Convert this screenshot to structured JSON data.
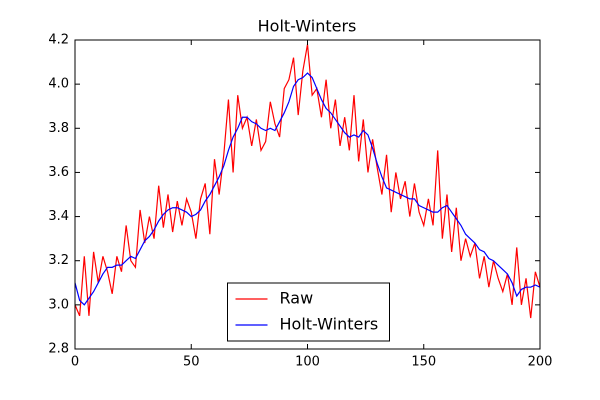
{
  "chart_data": {
    "type": "line",
    "title": "Holt-Winters",
    "x": [
      0,
      2,
      4,
      6,
      8,
      10,
      12,
      14,
      16,
      18,
      20,
      22,
      24,
      26,
      28,
      30,
      32,
      34,
      36,
      38,
      40,
      42,
      44,
      46,
      48,
      50,
      52,
      54,
      56,
      58,
      60,
      62,
      64,
      66,
      68,
      70,
      72,
      74,
      76,
      78,
      80,
      82,
      84,
      86,
      88,
      90,
      92,
      94,
      96,
      98,
      100,
      102,
      104,
      106,
      108,
      110,
      112,
      114,
      116,
      118,
      120,
      122,
      124,
      126,
      128,
      130,
      132,
      134,
      136,
      138,
      140,
      142,
      144,
      146,
      148,
      150,
      152,
      154,
      156,
      158,
      160,
      162,
      164,
      166,
      168,
      170,
      172,
      174,
      176,
      178,
      180,
      182,
      184,
      186,
      188,
      190,
      192,
      194,
      196,
      198,
      200
    ],
    "series": [
      {
        "name": "Raw",
        "color": "#ff0000",
        "values": [
          3.0,
          2.95,
          3.22,
          2.95,
          3.24,
          3.1,
          3.22,
          3.15,
          3.05,
          3.22,
          3.15,
          3.36,
          3.2,
          3.17,
          3.43,
          3.28,
          3.4,
          3.3,
          3.54,
          3.35,
          3.5,
          3.33,
          3.47,
          3.36,
          3.48,
          3.42,
          3.3,
          3.48,
          3.55,
          3.32,
          3.66,
          3.5,
          3.68,
          3.93,
          3.6,
          3.95,
          3.8,
          3.85,
          3.72,
          3.84,
          3.7,
          3.74,
          3.92,
          3.82,
          3.76,
          3.98,
          4.02,
          4.12,
          3.86,
          4.06,
          4.18,
          3.95,
          3.98,
          3.85,
          4.02,
          3.8,
          3.93,
          3.72,
          3.85,
          3.7,
          3.95,
          3.65,
          3.84,
          3.6,
          3.75,
          3.62,
          3.5,
          3.68,
          3.42,
          3.6,
          3.48,
          3.56,
          3.4,
          3.55,
          3.42,
          3.36,
          3.48,
          3.36,
          3.7,
          3.3,
          3.5,
          3.24,
          3.44,
          3.2,
          3.3,
          3.22,
          3.28,
          3.12,
          3.22,
          3.08,
          3.2,
          3.12,
          3.06,
          3.14,
          3.0,
          3.26,
          3.0,
          3.12,
          2.94,
          3.15,
          3.08
        ]
      },
      {
        "name": "Holt-Winters",
        "color": "#0000ff",
        "values": [
          3.1,
          3.02,
          3.0,
          3.03,
          3.06,
          3.1,
          3.14,
          3.17,
          3.17,
          3.18,
          3.18,
          3.2,
          3.22,
          3.21,
          3.25,
          3.29,
          3.31,
          3.34,
          3.38,
          3.41,
          3.43,
          3.44,
          3.44,
          3.43,
          3.42,
          3.4,
          3.41,
          3.43,
          3.47,
          3.5,
          3.54,
          3.58,
          3.63,
          3.7,
          3.76,
          3.8,
          3.85,
          3.85,
          3.83,
          3.82,
          3.8,
          3.79,
          3.8,
          3.79,
          3.83,
          3.87,
          3.92,
          3.99,
          4.02,
          4.03,
          4.05,
          4.03,
          3.98,
          3.93,
          3.89,
          3.87,
          3.84,
          3.81,
          3.78,
          3.76,
          3.77,
          3.76,
          3.79,
          3.77,
          3.71,
          3.64,
          3.58,
          3.53,
          3.52,
          3.51,
          3.5,
          3.49,
          3.48,
          3.48,
          3.45,
          3.44,
          3.43,
          3.42,
          3.42,
          3.44,
          3.45,
          3.42,
          3.39,
          3.36,
          3.32,
          3.3,
          3.28,
          3.25,
          3.24,
          3.21,
          3.2,
          3.18,
          3.16,
          3.14,
          3.1,
          3.04,
          3.07,
          3.08,
          3.08,
          3.09,
          3.08
        ]
      }
    ],
    "xlim": [
      0,
      200
    ],
    "xticks": [
      0,
      50,
      100,
      150,
      200
    ],
    "ylim": [
      2.8,
      4.2
    ],
    "yticks": [
      2.8,
      {
        "value": 3,
        "label": "3.0"
      },
      3.2,
      3.4,
      3.6,
      3.8,
      {
        "value": 4,
        "label": "4.0"
      },
      4.2
    ],
    "legend": "lower center",
    "grid": false
  }
}
